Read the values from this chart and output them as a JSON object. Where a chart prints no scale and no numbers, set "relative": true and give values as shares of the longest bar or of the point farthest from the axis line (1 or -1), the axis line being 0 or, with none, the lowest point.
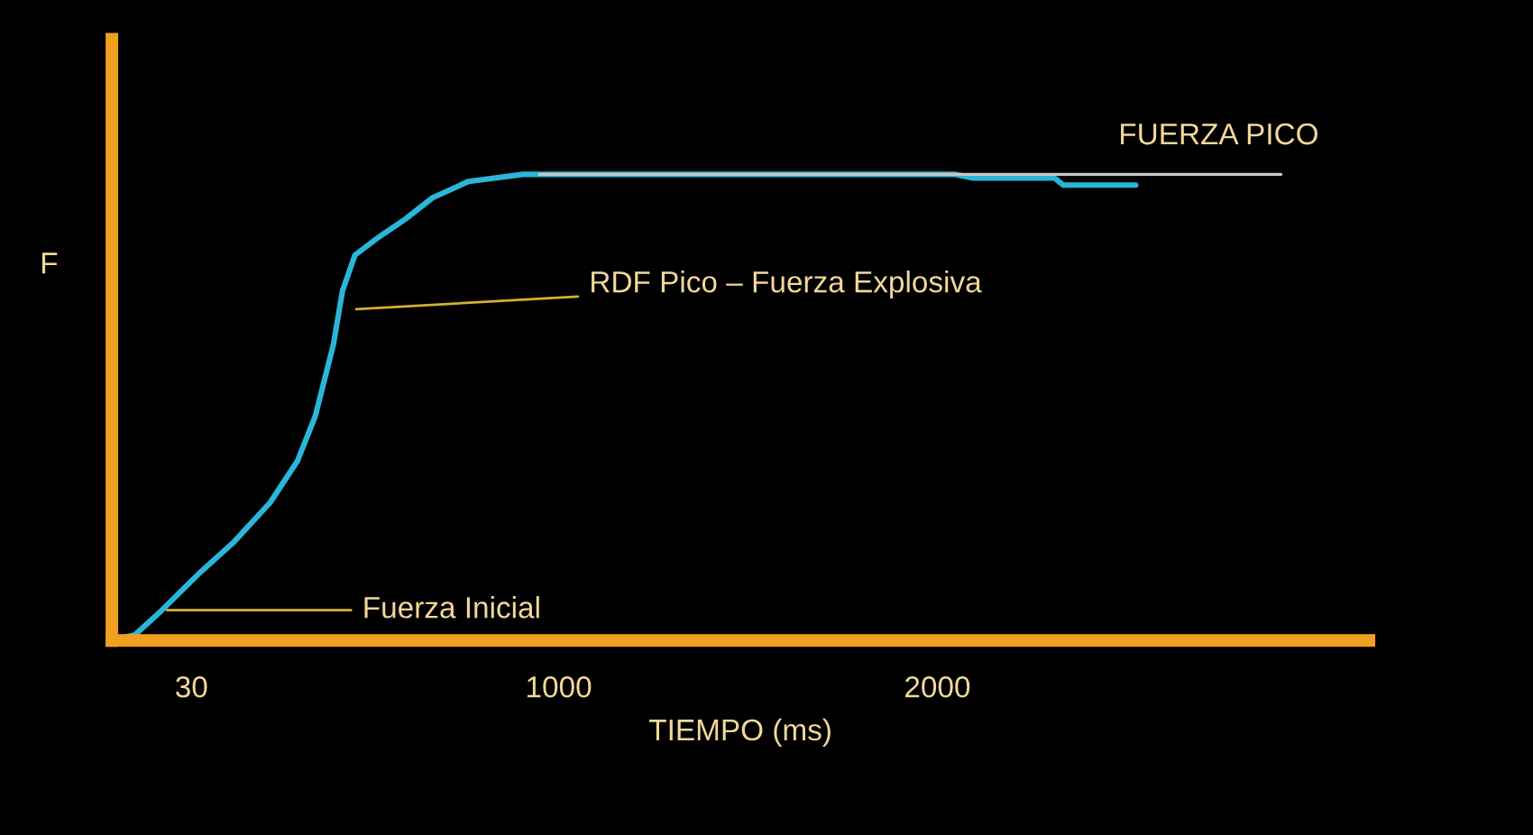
{
  "chart_data": {
    "type": "line",
    "relative": true,
    "xlabel": "TIEMPO (ms)",
    "ylabel": "F",
    "x": [
      -180,
      -119,
      -48,
      48,
      143,
      238,
      310,
      357,
      405,
      429,
      462,
      524,
      595,
      667,
      762,
      905,
      1143,
      2048,
      2095,
      2310,
      2333,
      2524
    ],
    "series": [
      {
        "color": "#29b6d8",
        "values": [
          0,
          0.012,
          0.065,
          0.142,
          0.212,
          0.296,
          0.385,
          0.481,
          0.635,
          0.75,
          0.827,
          0.865,
          0.904,
          0.95,
          0.985,
          1.0,
          1.0,
          1.0,
          0.992,
          0.992,
          0.977,
          0.977
        ]
      }
    ],
    "xlim": [
      -180,
      3140
    ],
    "xticks": [
      30,
      1000,
      2000
    ],
    "ref_lines": [
      {
        "axis": "y",
        "value": 1.0,
        "label": "FUERZA PICO",
        "color": "#c8c8c8"
      }
    ],
    "annotations": [
      {
        "text": "RDF Pico – Fuerza Explosiva",
        "x": 452,
        "y": 0.71
      },
      {
        "text": "Fuerza Inicial",
        "x": -48,
        "y": 0.065
      }
    ],
    "grid": false,
    "legend": false
  }
}
